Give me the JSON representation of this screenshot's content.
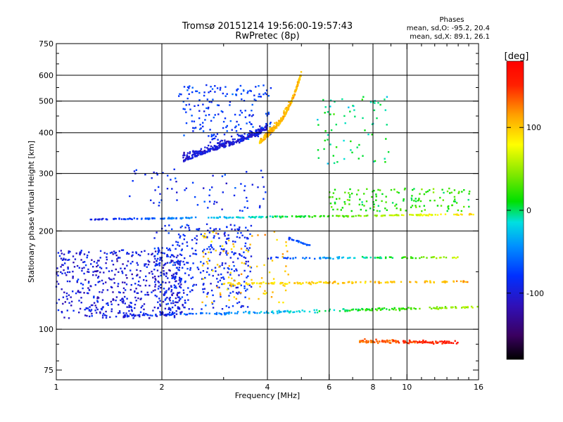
{
  "chart_data": {
    "type": "scatter",
    "title": "Tromsø 20151214 19:56:00-19:57:43",
    "subtitle": "RwPretec (8p)",
    "xlabel": "Frequency [MHz]",
    "ylabel": "Stationary phase Virtual Height [km]",
    "xscale": "log",
    "yscale": "log",
    "xlim": [
      1,
      16
    ],
    "ylim": [
      70,
      750
    ],
    "grid": true,
    "x_ticks": [
      1,
      2,
      4,
      6,
      8,
      10,
      16
    ],
    "y_ticks": [
      75,
      100,
      200,
      300,
      400,
      500,
      600,
      750
    ],
    "x_grid": [
      2,
      4,
      6,
      8,
      10
    ],
    "y_grid": [
      100,
      200,
      300,
      400,
      500,
      600
    ],
    "x_minor_ticks": [
      3,
      5,
      7,
      9,
      11,
      12,
      13,
      14,
      15
    ],
    "y_minor_ticks": [
      80,
      90,
      150,
      250,
      350,
      450,
      550,
      650,
      700
    ],
    "phase_stats": {
      "heading": "Phases",
      "line_o": "mean, sd,O: -95.2, 20.4",
      "line_x": "mean, sd,X:  89.1, 26.1"
    },
    "colorbar": {
      "label": "[deg]",
      "range": [
        -180,
        180
      ],
      "ticks": [
        100,
        0,
        -100
      ],
      "tick_labels": [
        "100",
        "0",
        "-100"
      ]
    },
    "series": [
      {
        "name": "E-layer O trace",
        "type": "line_trace",
        "f_range": [
          1.55,
          16
        ],
        "h_start": 110,
        "h_end": 117,
        "phase": [
          -95,
          60
        ],
        "count": 230
      },
      {
        "name": "Es/E low-band scatter",
        "type": "cloud",
        "f_range": [
          1.0,
          2.3
        ],
        "h_range": [
          108,
          175
        ],
        "phase": -100,
        "count": 520
      },
      {
        "name": "Mid-band cluster",
        "type": "cloud",
        "f_range": [
          1.9,
          3.6
        ],
        "h_range": [
          115,
          210
        ],
        "phase": -85,
        "count": 360
      },
      {
        "name": "Mid-band yellow points",
        "type": "cloud",
        "f_range": [
          2.6,
          4.6
        ],
        "h_range": [
          120,
          200
        ],
        "phase": 100,
        "count": 90
      },
      {
        "name": "Trace 138 km",
        "type": "line_trace",
        "f_range": [
          3.0,
          15.0
        ],
        "h_start": 138,
        "h_end": 140,
        "phase": [
          90,
          110
        ],
        "count": 150
      },
      {
        "name": "Trace 165 km",
        "type": "line_trace",
        "f_range": [
          4.0,
          14.0
        ],
        "h_start": 165,
        "h_end": 166,
        "phase": [
          -85,
          60
        ],
        "count": 90
      },
      {
        "name": "Trace 183 km",
        "type": "line_trace",
        "f_range": [
          4.6,
          5.3
        ],
        "h_start": 190,
        "h_end": 180,
        "phase": [
          -80,
          -60
        ],
        "count": 25
      },
      {
        "name": "F-layer low trace",
        "type": "line_trace",
        "f_range": [
          1.25,
          15.5
        ],
        "h_start": 217,
        "h_end": 225,
        "phase": [
          -95,
          100
        ],
        "count": 260
      },
      {
        "name": "Trace 235-265 km",
        "type": "cloud",
        "f_range": [
          6.0,
          15.5
        ],
        "h_range": [
          230,
          270
        ],
        "phase": 20,
        "count": 140
      },
      {
        "name": "Sparse 250-300 km",
        "type": "cloud",
        "f_range": [
          1.6,
          4.0
        ],
        "h_range": [
          230,
          310
        ],
        "phase": -85,
        "count": 70
      },
      {
        "name": "F-layer O arch",
        "type": "arc",
        "f_range": [
          2.3,
          4.0
        ],
        "h_range": [
          325,
          420
        ],
        "phase": -100,
        "count": 320
      },
      {
        "name": "F-layer upper band",
        "type": "cloud",
        "f_range": [
          2.2,
          4.1
        ],
        "h_range": [
          380,
          560
        ],
        "phase": -75,
        "count": 180
      },
      {
        "name": "F-layer X cusp",
        "type": "arc",
        "f_range": [
          3.8,
          5.0
        ],
        "h_range": [
          370,
          630
        ],
        "phase": 105,
        "count": 260
      },
      {
        "name": "Upper traces 6-9 MHz",
        "type": "cloud",
        "f_range": [
          5.5,
          9.0
        ],
        "h_range": [
          320,
          520
        ],
        "phase": 0,
        "count": 70
      },
      {
        "name": "Lowest X trace",
        "type": "line_trace",
        "f_range": [
          7.3,
          14.0
        ],
        "h_start": 92,
        "h_end": 91,
        "phase": [
          130,
          160
        ],
        "count": 130
      }
    ]
  }
}
